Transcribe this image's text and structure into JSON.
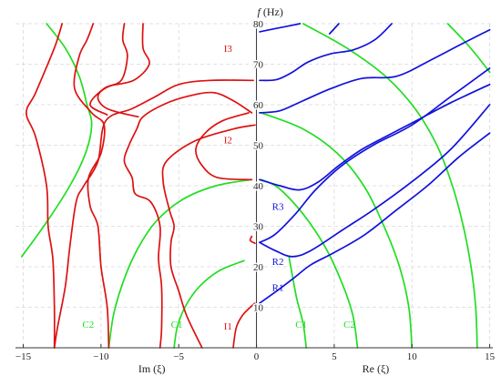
{
  "chart_data": {
    "type": "line",
    "title": "",
    "xlabel_left": "Im (ξ)",
    "xlabel_right": "Re (ξ)",
    "ylabel_italic": "f",
    "ylabel_unit": " (Hz)",
    "xlim": [
      -15.5,
      15.2
    ],
    "ylim": [
      0,
      80
    ],
    "x_ticks": [
      {
        "value": -15,
        "label": "−15"
      },
      {
        "value": -10,
        "label": "−10"
      },
      {
        "value": -5,
        "label": "−5"
      },
      {
        "value": 0,
        "label": "0"
      },
      {
        "value": 5,
        "label": "5"
      },
      {
        "value": 10,
        "label": "10"
      },
      {
        "value": 15,
        "label": "15"
      }
    ],
    "y_ticks": [
      10,
      20,
      30,
      40,
      50,
      60,
      70,
      80
    ],
    "grid": true,
    "colors": {
      "green": "#22dd22",
      "red": "#dd1111",
      "blue": "#1111dd"
    },
    "series": [
      {
        "color": "green",
        "points": [
          [
            -9.5,
            0
          ],
          [
            -9.2,
            8
          ],
          [
            -8.6,
            16
          ],
          [
            -7.7,
            24
          ],
          [
            -6.5,
            31
          ],
          [
            -4.8,
            36.5
          ],
          [
            -2.6,
            40
          ],
          [
            -0.3,
            41.5
          ]
        ]
      },
      {
        "color": "green",
        "points": [
          [
            -15.1,
            22.5
          ],
          [
            -13.5,
            31
          ],
          [
            -12,
            40
          ],
          [
            -11,
            48
          ],
          [
            -10.6,
            55
          ],
          [
            -10.9,
            60
          ],
          [
            -11.4,
            67
          ],
          [
            -12.3,
            74
          ],
          [
            -13.5,
            80
          ]
        ]
      },
      {
        "color": "green",
        "points": [
          [
            -5.3,
            0
          ],
          [
            -5.1,
            5
          ],
          [
            -4.6,
            10
          ],
          [
            -3.7,
            15
          ],
          [
            -2.4,
            19
          ],
          [
            -0.8,
            21.5
          ]
        ]
      },
      {
        "color": "green",
        "points": [
          [
            3.2,
            0
          ],
          [
            3.0,
            6
          ],
          [
            2.6,
            12
          ],
          [
            2.3,
            18
          ],
          [
            2.1,
            22.3
          ]
        ]
      },
      {
        "color": "green",
        "points": [
          [
            6.5,
            0
          ],
          [
            6.2,
            8
          ],
          [
            5.5,
            16
          ],
          [
            4.4,
            25
          ],
          [
            3.0,
            33
          ],
          [
            1.4,
            39.5
          ],
          [
            0.3,
            41.5
          ]
        ]
      },
      {
        "color": "green",
        "points": [
          [
            10.0,
            0
          ],
          [
            9.8,
            10
          ],
          [
            9.2,
            20
          ],
          [
            8.2,
            30
          ],
          [
            6.9,
            40
          ],
          [
            5.2,
            48
          ],
          [
            3.0,
            54
          ],
          [
            0.3,
            58
          ]
        ]
      },
      {
        "color": "green",
        "points": [
          [
            14.2,
            0
          ],
          [
            14.1,
            10
          ],
          [
            13.8,
            20
          ],
          [
            13.3,
            30
          ],
          [
            12.6,
            40
          ],
          [
            11.6,
            50
          ],
          [
            10.2,
            59
          ],
          [
            8.3,
            67
          ],
          [
            5.8,
            74
          ],
          [
            3.0,
            80
          ]
        ]
      },
      {
        "color": "green",
        "points": [
          [
            12.3,
            80
          ],
          [
            13.3,
            76
          ],
          [
            14.2,
            72
          ],
          [
            15.0,
            68
          ]
        ]
      },
      {
        "color": "red",
        "points": [
          [
            -1.5,
            0
          ],
          [
            -1.3,
            5
          ],
          [
            -0.9,
            8
          ],
          [
            -0.4,
            10
          ],
          [
            -0.1,
            11
          ]
        ]
      },
      {
        "color": "red",
        "points": [
          [
            -0.3,
            27.5
          ],
          [
            -0.4,
            26.5
          ],
          [
            -0.1,
            25.8
          ]
        ]
      },
      {
        "color": "red",
        "points": [
          [
            -3.5,
            0
          ],
          [
            -4.5,
            8
          ],
          [
            -5,
            14
          ],
          [
            -5.5,
            20
          ],
          [
            -5.5,
            26
          ],
          [
            -5.3,
            30
          ],
          [
            -5.6,
            34
          ],
          [
            -6,
            41
          ],
          [
            -5.8,
            46
          ],
          [
            -4,
            51
          ],
          [
            -1.5,
            54
          ],
          [
            -0.1,
            55
          ]
        ]
      },
      {
        "color": "red",
        "points": [
          [
            -0.3,
            41.5
          ],
          [
            -2.5,
            42
          ],
          [
            -3.5,
            45
          ],
          [
            -3.9,
            49
          ],
          [
            -3.3,
            53
          ],
          [
            -2.2,
            56
          ],
          [
            -0.5,
            58
          ]
        ]
      },
      {
        "color": "red",
        "points": [
          [
            -0.3,
            58
          ],
          [
            -1.5,
            61
          ],
          [
            -2.8,
            63
          ],
          [
            -4.5,
            62
          ],
          [
            -6,
            60
          ],
          [
            -7.3,
            57
          ],
          [
            -7.7,
            54
          ],
          [
            -8.2,
            50
          ],
          [
            -8.5,
            46
          ],
          [
            -8,
            42
          ],
          [
            -7.8,
            38
          ],
          [
            -6.8,
            36
          ],
          [
            -6.2,
            30
          ],
          [
            -6.3,
            22
          ],
          [
            -6.1,
            15
          ],
          [
            -6.1,
            5
          ],
          [
            -6.2,
            0
          ]
        ]
      },
      {
        "color": "red",
        "points": [
          [
            -0.2,
            66
          ],
          [
            -3,
            66
          ],
          [
            -5,
            65
          ],
          [
            -6.5,
            62
          ],
          [
            -8,
            59
          ],
          [
            -9.7,
            56
          ],
          [
            -10.2,
            46
          ],
          [
            -11.1,
            40
          ],
          [
            -11.6,
            36
          ],
          [
            -12,
            25
          ],
          [
            -12.3,
            15
          ],
          [
            -12.8,
            5
          ],
          [
            -13,
            0
          ]
        ]
      },
      {
        "color": "red",
        "points": [
          [
            -12.5,
            80
          ],
          [
            -13,
            74
          ],
          [
            -14.2,
            63
          ],
          [
            -14.8,
            58
          ],
          [
            -14.2,
            52
          ],
          [
            -13.5,
            40
          ],
          [
            -13.4,
            30
          ],
          [
            -13.1,
            22
          ],
          [
            -13,
            10
          ],
          [
            -13,
            0
          ]
        ]
      },
      {
        "color": "red",
        "points": [
          [
            -10.5,
            80
          ],
          [
            -10.9,
            76
          ],
          [
            -11.4,
            72
          ],
          [
            -11.7,
            64
          ],
          [
            -10.6,
            58
          ],
          [
            -9.8,
            55
          ],
          [
            -10,
            48
          ],
          [
            -10.8,
            42
          ],
          [
            -10.7,
            35
          ],
          [
            -10.2,
            30
          ],
          [
            -10,
            20
          ],
          [
            -9.6,
            10
          ],
          [
            -9.5,
            0
          ]
        ]
      },
      {
        "color": "red",
        "points": [
          [
            -8.5,
            80
          ],
          [
            -8.6,
            76
          ],
          [
            -8.3,
            72
          ],
          [
            -8.7,
            66
          ],
          [
            -9.8,
            64
          ],
          [
            -10.7,
            60
          ],
          [
            -9.6,
            57.5
          ]
        ]
      },
      {
        "color": "red",
        "points": [
          [
            -7.3,
            80
          ],
          [
            -7.3,
            74
          ],
          [
            -6.9,
            70
          ],
          [
            -7.9,
            66
          ],
          [
            -9.5,
            64.5
          ],
          [
            -10.2,
            62
          ],
          [
            -9.6,
            59
          ],
          [
            -7.6,
            57
          ]
        ]
      },
      {
        "color": "blue",
        "points": [
          [
            0.2,
            11
          ],
          [
            1.3,
            14
          ],
          [
            2.5,
            17.5
          ],
          [
            3.5,
            20.5
          ],
          [
            5,
            23.5
          ],
          [
            7,
            28
          ],
          [
            9,
            34
          ],
          [
            11,
            40
          ],
          [
            13,
            47
          ],
          [
            15,
            53
          ]
        ]
      },
      {
        "color": "blue",
        "points": [
          [
            0.2,
            26
          ],
          [
            1.2,
            24
          ],
          [
            2.3,
            22.5
          ],
          [
            3.5,
            24
          ],
          [
            5.5,
            29
          ],
          [
            7.5,
            34
          ],
          [
            10,
            41
          ],
          [
            12.5,
            49
          ],
          [
            15,
            60
          ]
        ]
      },
      {
        "color": "blue",
        "points": [
          [
            0.2,
            26
          ],
          [
            1.2,
            28
          ],
          [
            2.5,
            33
          ],
          [
            3.8,
            39
          ],
          [
            5.5,
            45
          ],
          [
            7.5,
            50
          ],
          [
            10,
            55
          ],
          [
            12.5,
            62
          ],
          [
            15,
            69
          ]
        ]
      },
      {
        "color": "blue",
        "points": [
          [
            0.2,
            41.5
          ],
          [
            1.5,
            40
          ],
          [
            2.8,
            39
          ],
          [
            4,
            41
          ],
          [
            5.3,
            45
          ],
          [
            6.8,
            49
          ],
          [
            8.5,
            52.5
          ],
          [
            10.5,
            56.5
          ],
          [
            12.5,
            60.5
          ],
          [
            15,
            65
          ]
        ]
      },
      {
        "color": "blue",
        "points": [
          [
            0.2,
            58
          ],
          [
            1.5,
            58.5
          ],
          [
            3,
            61
          ],
          [
            4.8,
            64
          ],
          [
            6.8,
            66.5
          ],
          [
            9,
            67
          ],
          [
            11.2,
            71
          ],
          [
            13.2,
            75
          ],
          [
            15,
            78.5
          ]
        ]
      },
      {
        "color": "blue",
        "points": [
          [
            0.2,
            66
          ],
          [
            1.3,
            66.2
          ],
          [
            2.3,
            68
          ],
          [
            3.3,
            70.5
          ],
          [
            4.7,
            72.5
          ],
          [
            6.2,
            73.5
          ],
          [
            7.6,
            76
          ],
          [
            8.7,
            80
          ]
        ]
      },
      {
        "color": "blue",
        "points": [
          [
            0.2,
            78
          ],
          [
            1.5,
            79
          ],
          [
            2.8,
            80
          ]
        ]
      },
      {
        "color": "blue",
        "points": [
          [
            4.7,
            77.5
          ],
          [
            5.3,
            80
          ]
        ]
      }
    ],
    "annotations": [
      {
        "text": "I3",
        "x": -2.1,
        "y": 73,
        "color": "red"
      },
      {
        "text": "I2",
        "x": -2.1,
        "y": 50.5,
        "color": "red"
      },
      {
        "text": "I1",
        "x": -2.1,
        "y": 4.5,
        "color": "red"
      },
      {
        "text": "R3",
        "x": 1.0,
        "y": 34,
        "color": "blue"
      },
      {
        "text": "R2",
        "x": 1.0,
        "y": 20.5,
        "color": "blue"
      },
      {
        "text": "R1",
        "x": 1.0,
        "y": 14,
        "color": "blue"
      },
      {
        "text": "C2",
        "x": -11.2,
        "y": 5,
        "color": "green"
      },
      {
        "text": "C1",
        "x": -5.5,
        "y": 5,
        "color": "green"
      },
      {
        "text": "C1",
        "x": 2.5,
        "y": 5,
        "color": "green"
      },
      {
        "text": "C2",
        "x": 5.6,
        "y": 5,
        "color": "green"
      }
    ]
  }
}
